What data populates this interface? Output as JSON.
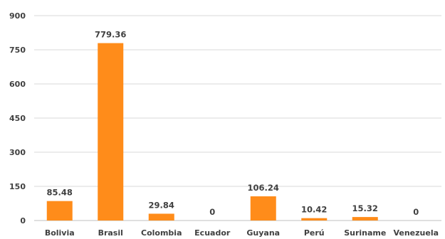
{
  "chart_data": {
    "type": "bar",
    "categories": [
      "Bolivia",
      "Brasil",
      "Colombia",
      "Ecuador",
      "Guyana",
      "Perú",
      "Suriname",
      "Venezuela"
    ],
    "values": [
      85.48,
      779.36,
      29.84,
      0,
      106.24,
      10.42,
      15.32,
      0
    ],
    "data_labels": [
      "85.48",
      "779.36",
      "29.84",
      "0",
      "106.24",
      "10.42",
      "15.32",
      "0"
    ],
    "yticks": [
      0,
      150,
      300,
      450,
      600,
      750,
      900
    ],
    "ylim": [
      0,
      900
    ],
    "grid": true,
    "legend": "none",
    "title": "",
    "xlabel": "",
    "ylabel": "",
    "bar_color": "#ff8c1a",
    "text_color": "#404040",
    "grid_color": "#d9d9d9"
  }
}
